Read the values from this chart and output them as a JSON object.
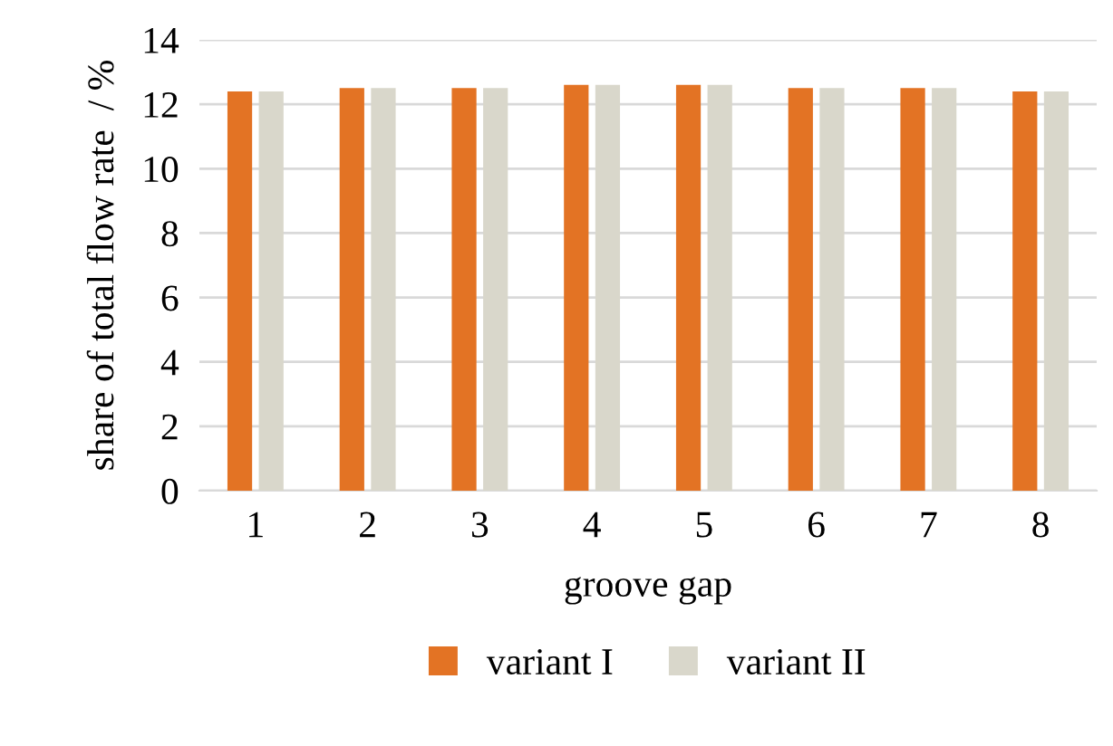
{
  "chart_data": {
    "type": "bar",
    "xlabel": "groove gap",
    "ylabel": "share of total flow rate  / %",
    "categories": [
      "1",
      "2",
      "3",
      "4",
      "5",
      "6",
      "7",
      "8"
    ],
    "series": [
      {
        "name": "variant I",
        "color": "#e37324",
        "values": [
          12.4,
          12.5,
          12.5,
          12.6,
          12.6,
          12.5,
          12.5,
          12.4
        ]
      },
      {
        "name": "variant II",
        "color": "#d9d7cb",
        "values": [
          12.4,
          12.5,
          12.5,
          12.6,
          12.6,
          12.5,
          12.5,
          12.4
        ]
      }
    ],
    "ylim": [
      0,
      14
    ],
    "yticks": [
      0,
      2,
      4,
      6,
      8,
      10,
      12,
      14
    ],
    "grid": "y",
    "legend": "bottom"
  }
}
